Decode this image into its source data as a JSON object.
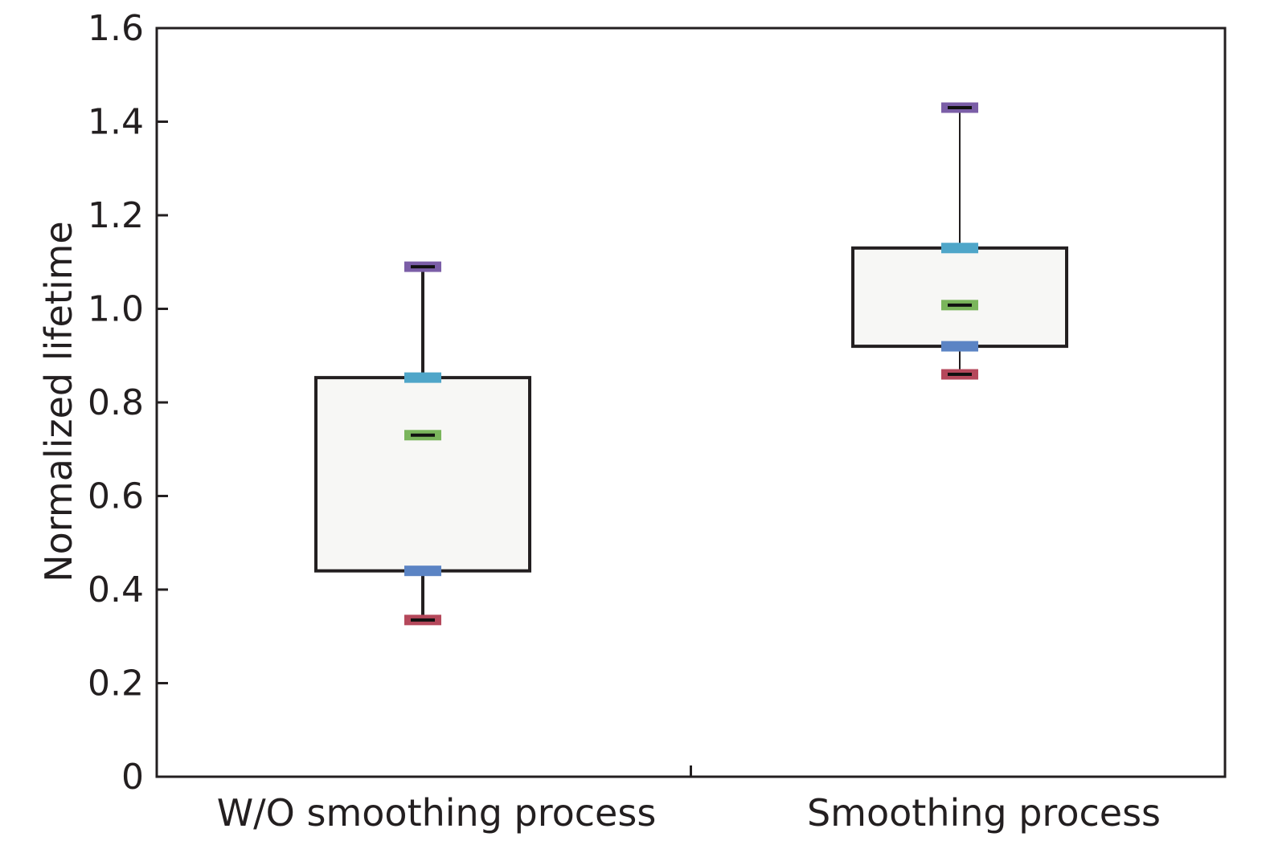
{
  "chart_data": {
    "type": "box",
    "ylabel": "Normalized lifetime",
    "xlabel": "",
    "ylim": [
      0,
      1.6
    ],
    "yticks": [
      "0",
      "0.2",
      "0.4",
      "0.6",
      "0.8",
      "1.0",
      "1.2",
      "1.4",
      "1.6"
    ],
    "categories": [
      "W/O smoothing process",
      "Smoothing process"
    ],
    "boxes": [
      {
        "category": "W/O smoothing process",
        "min": 0.335,
        "q1": 0.44,
        "median": 0.73,
        "q3": 0.853,
        "max": 1.09
      },
      {
        "category": "Smoothing process",
        "min": 0.86,
        "q1": 0.92,
        "median": 1.008,
        "q3": 1.13,
        "max": 1.43
      }
    ],
    "grid": false,
    "colors": {
      "axis": "#231f20",
      "box_fill": "#f7f7f5",
      "max_marker": "#7b5ea7",
      "q3_marker": "#4fa6c9",
      "median_marker": "#7ab55c",
      "q1_marker": "#5b84c4",
      "min_marker": "#b5485b"
    }
  }
}
